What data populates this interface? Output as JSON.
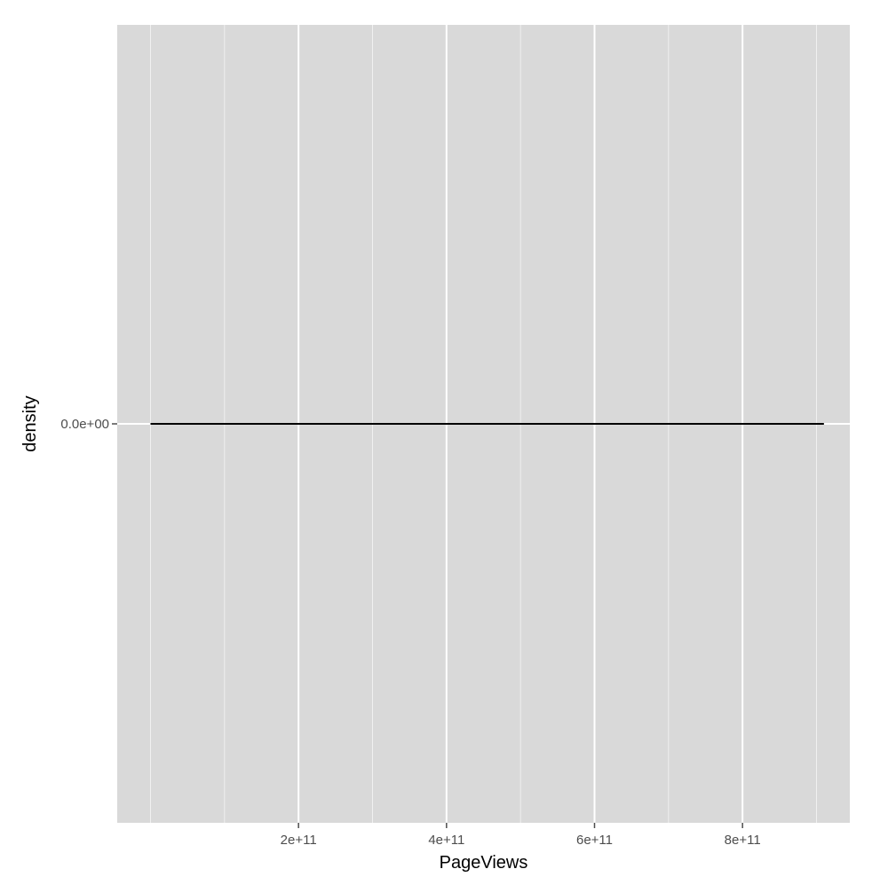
{
  "chart_data": {
    "type": "line",
    "title": "",
    "xlabel": "PageViews",
    "ylabel": "density",
    "x_ticks": [
      {
        "value": 200000000000,
        "label": "2e+11"
      },
      {
        "value": 400000000000,
        "label": "4e+11"
      },
      {
        "value": 600000000000,
        "label": "6e+11"
      },
      {
        "value": 800000000000,
        "label": "8e+11"
      }
    ],
    "x_minor_breaks": [
      0,
      100000000000,
      300000000000,
      500000000000,
      700000000000,
      900000000000
    ],
    "y_ticks": [
      {
        "value": 0,
        "label": "0.0e+00"
      }
    ],
    "xlim": [
      -45000000000,
      945000000000
    ],
    "ylim": [
      -1,
      1
    ],
    "grid": true,
    "series": [
      {
        "x": [
          0,
          910000000000
        ],
        "y": [
          0,
          0
        ]
      }
    ],
    "colors": {
      "panel": "#d9d9d9",
      "grid_major": "#ffffff",
      "grid_minor": "#f0f0f0",
      "line": "#000000",
      "tick_mark": "#4d4d4d"
    }
  }
}
